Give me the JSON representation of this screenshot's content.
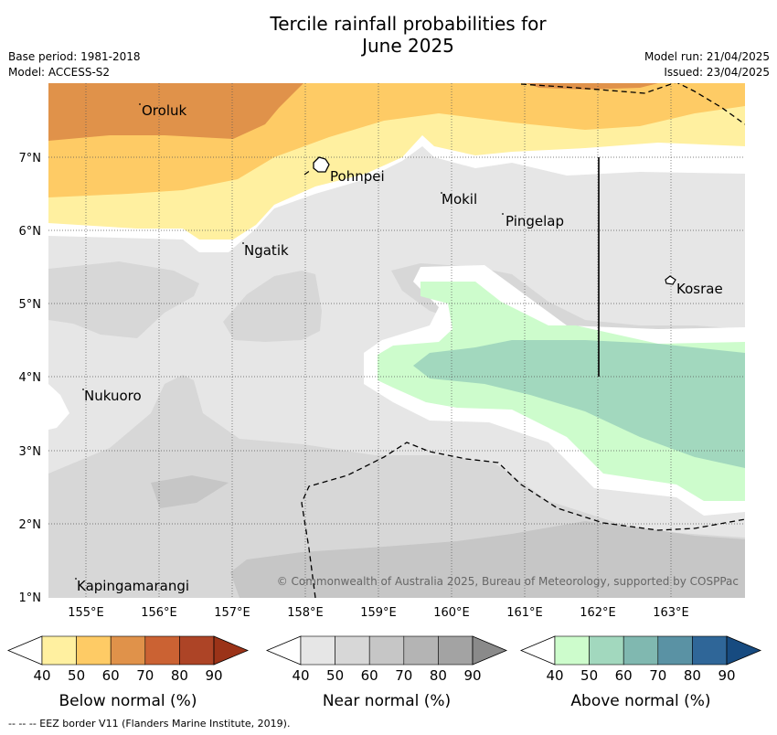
{
  "title_line1": "Tercile rainfall probabilities for",
  "title_line2": "June 2025",
  "base_period": "Base period: 1981-2018",
  "model": "Model: ACCESS-S2",
  "model_run": "Model run: 21/04/2025",
  "issued": "Issued: 23/04/2025",
  "copyright": "© Commonwealth of Australia 2025, Bureau of Meteorology, supported by COSPPac",
  "footer": "--  --  -- EEZ border V11 (Flanders Marine Institute, 2019).",
  "map": {
    "lat_ticks": [
      "7°N",
      "6°N",
      "5°N",
      "4°N",
      "3°N",
      "2°N",
      "1°N"
    ],
    "lon_ticks": [
      "155°E",
      "156°E",
      "157°E",
      "158°E",
      "159°E",
      "160°E",
      "161°E",
      "162°E",
      "163°E"
    ],
    "places": [
      {
        "name": "Oroluk"
      },
      {
        "name": "Pohnpei"
      },
      {
        "name": "Mokil"
      },
      {
        "name": "Pingelap"
      },
      {
        "name": "Ngatik"
      },
      {
        "name": "Kosrae"
      },
      {
        "name": "Nukuoro"
      },
      {
        "name": "Kapingamarangi"
      }
    ]
  },
  "legends": [
    {
      "title": "Below normal (%)",
      "ticks": [
        "40",
        "50",
        "60",
        "70",
        "80",
        "90"
      ],
      "colors": [
        "#fff0a0",
        "#fecb65",
        "#e0924a",
        "#cb6233",
        "#ad4426",
        "#9b3318"
      ]
    },
    {
      "title": "Near normal (%)",
      "ticks": [
        "40",
        "50",
        "60",
        "70",
        "80",
        "90"
      ],
      "colors": [
        "#e6e6e6",
        "#d7d7d7",
        "#c6c6c6",
        "#b4b4b4",
        "#a3a3a3",
        "#8a8a8a"
      ]
    },
    {
      "title": "Above normal (%)",
      "ticks": [
        "40",
        "50",
        "60",
        "70",
        "80",
        "90"
      ],
      "colors": [
        "#cdfccc",
        "#a2d8be",
        "#80b8b0",
        "#5a92a4",
        "#2f6698",
        "#174b80"
      ]
    }
  ]
}
